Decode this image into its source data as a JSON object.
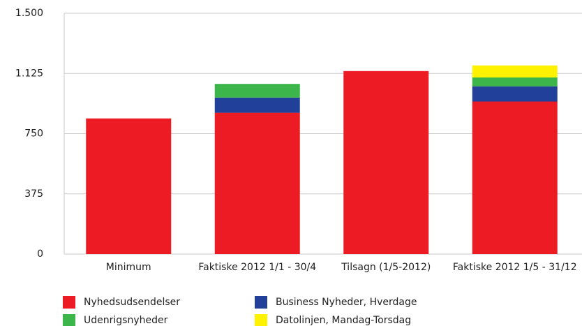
{
  "chart_data": {
    "type": "stacked_bar",
    "categories": [
      "Minimum",
      "Faktiske 2012 1/1 - 30/4",
      "Tilsagn (1/5-2012)",
      "Faktiske 2012 1/5 - 31/12"
    ],
    "series": [
      {
        "name": "Nyhedsudsendelser",
        "color": "#ed1c24",
        "values": [
          845,
          880,
          1140,
          950
        ]
      },
      {
        "name": "Business Nyheder, Hverdage",
        "color": "#21409a",
        "values": [
          null,
          95,
          null,
          95
        ]
      },
      {
        "name": "Udenrigsnyheder",
        "color": "#3cb54a",
        "values": [
          null,
          85,
          null,
          55
        ]
      },
      {
        "name": "Datolinjen, Mandag-Torsdag",
        "color": "#fff200",
        "values": [
          null,
          null,
          null,
          75
        ]
      }
    ],
    "ylim": [
      0,
      1500
    ],
    "yticks": [
      0,
      375,
      750,
      {
        "value": 1125,
        "label": "1.125"
      },
      {
        "value": 1500,
        "label": "1.500"
      }
    ],
    "grid": true
  }
}
